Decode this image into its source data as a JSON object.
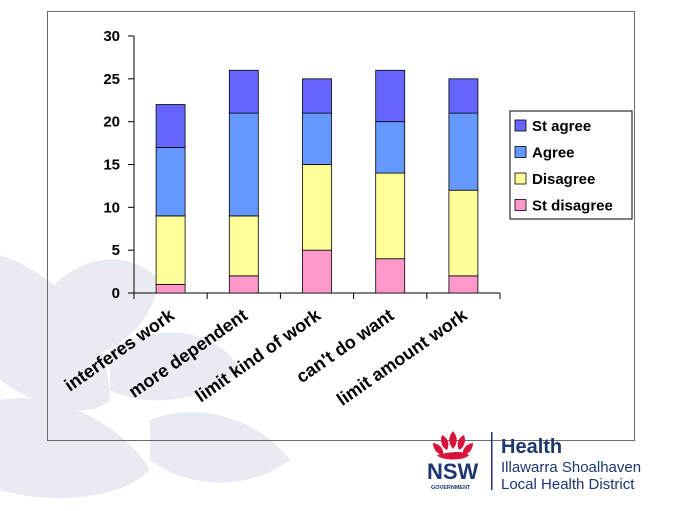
{
  "chart_data": {
    "type": "bar",
    "stacked": true,
    "categories": [
      "interferes work",
      "more dependent",
      "limit kind of work",
      "can't do want",
      "limit amount work"
    ],
    "series": [
      {
        "name": "St disagree",
        "color": "#ff99cc",
        "values": [
          1,
          2,
          5,
          4,
          2
        ]
      },
      {
        "name": "Disagree",
        "color": "#ffff99",
        "values": [
          8,
          7,
          10,
          10,
          10
        ]
      },
      {
        "name": "Agree",
        "color": "#6699ff",
        "values": [
          8,
          12,
          6,
          6,
          9
        ]
      },
      {
        "name": "St agree",
        "color": "#6666ff",
        "values": [
          5,
          5,
          4,
          6,
          4
        ]
      }
    ],
    "ylim": [
      0,
      30
    ],
    "yticks": [
      0,
      5,
      10,
      15,
      20,
      25,
      30
    ],
    "legend_order": [
      "St agree",
      "Agree",
      "Disagree",
      "St disagree"
    ],
    "legend_position": "right",
    "grid": false
  },
  "logo": {
    "org_name": "Health",
    "district_line1": "Illawarra Shoalhaven",
    "district_line2": "Local Health District",
    "state": "NSW",
    "state_sub": "GOVERNMENT"
  },
  "colors": {
    "logo_navy": "#1d3670",
    "waratah_red": "#d7153a",
    "background_petals": "#e8ebf2"
  }
}
